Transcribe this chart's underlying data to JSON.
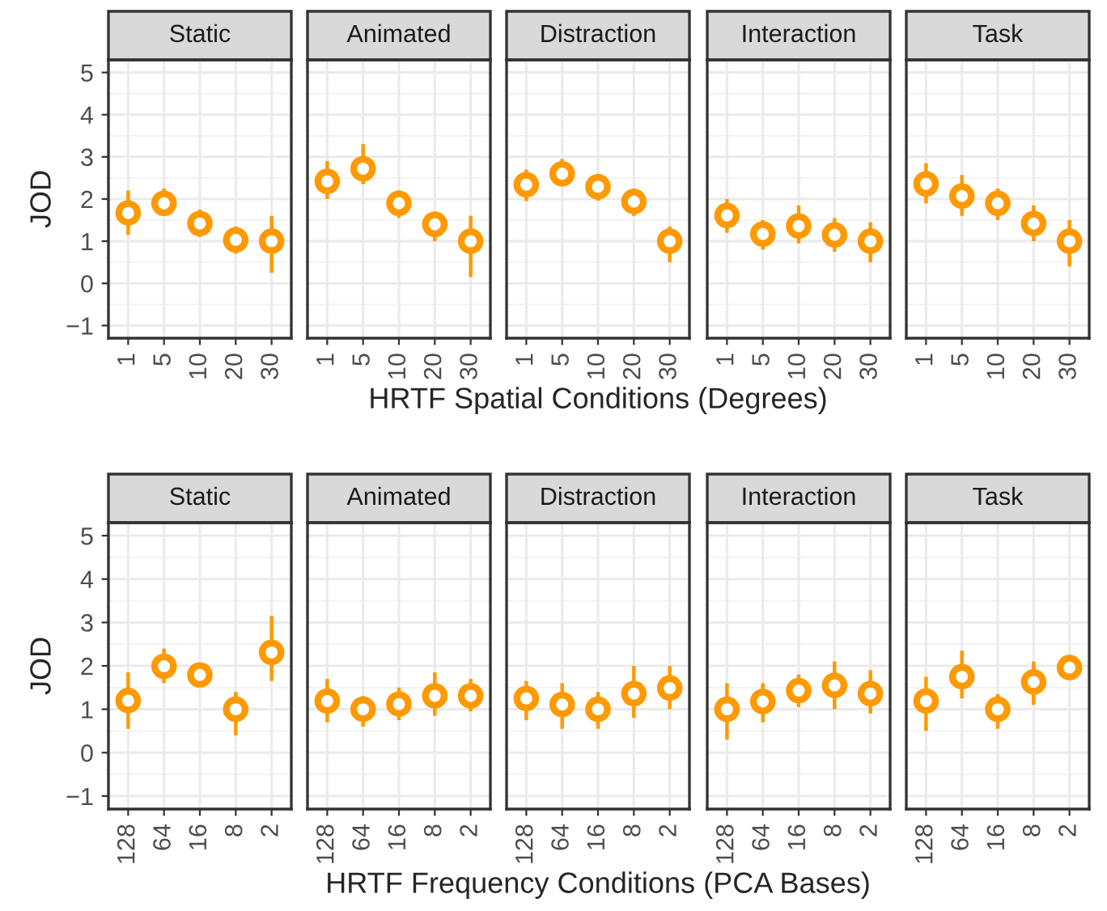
{
  "chart_data": [
    {
      "type": "scatter",
      "title": "Static",
      "ylabel": "JOD",
      "categories": [
        "1",
        "5",
        "10",
        "20",
        "30"
      ],
      "values": [
        1.67,
        1.9,
        1.42,
        1.03,
        1.0
      ],
      "errors": [
        [
          1.15,
          2.2
        ],
        [
          1.6,
          2.25
        ],
        [
          1.1,
          1.75
        ],
        [
          0.7,
          1.35
        ],
        [
          0.25,
          1.6
        ]
      ],
      "color": "#ff9900",
      "marker": "circle",
      "ylim": [
        -1.3,
        5.3
      ],
      "yticks": [
        {
          "value": -1,
          "label": "−1"
        },
        0,
        1,
        2,
        3,
        4,
        5
      ],
      "grid": true
    },
    {
      "type": "scatter",
      "title": "Animated",
      "categories": [
        "1",
        "5",
        "10",
        "20",
        "30"
      ],
      "values": [
        2.42,
        2.72,
        1.9,
        1.4,
        1.0
      ],
      "errors": [
        [
          2.0,
          2.9
        ],
        [
          2.35,
          3.3
        ],
        [
          1.55,
          2.2
        ],
        [
          1.0,
          1.7
        ],
        [
          0.15,
          1.6
        ]
      ],
      "color": "#ff9900",
      "marker": "circle",
      "ylim": [
        -1.3,
        5.3
      ],
      "yticks": [
        -1,
        0,
        1,
        2,
        3,
        4,
        5
      ],
      "grid": true,
      "tick_labels": "x"
    },
    {
      "type": "scatter",
      "title": "Distraction",
      "xlabel": "HRTF Spatial Conditions (Degrees)",
      "categories": [
        "1",
        "5",
        "10",
        "20",
        "30"
      ],
      "values": [
        2.34,
        2.6,
        2.29,
        1.94,
        1.0
      ],
      "errors": [
        [
          1.95,
          2.7
        ],
        [
          2.3,
          2.95
        ],
        [
          1.96,
          2.6
        ],
        [
          1.6,
          2.25
        ],
        [
          0.5,
          1.35
        ]
      ],
      "color": "#ff9900",
      "marker": "circle",
      "ylim": [
        -1.3,
        5.3
      ],
      "yticks": [
        -1,
        0,
        1,
        2,
        3,
        4,
        5
      ],
      "grid": true,
      "tick_labels": "x"
    },
    {
      "type": "scatter",
      "title": "Interaction",
      "categories": [
        "1",
        "5",
        "10",
        "20",
        "30"
      ],
      "values": [
        1.61,
        1.17,
        1.36,
        1.15,
        1.0
      ],
      "errors": [
        [
          1.2,
          2.0
        ],
        [
          0.8,
          1.5
        ],
        [
          0.95,
          1.85
        ],
        [
          0.75,
          1.55
        ],
        [
          0.5,
          1.45
        ]
      ],
      "color": "#ff9900",
      "marker": "circle",
      "ylim": [
        -1.3,
        5.3
      ],
      "yticks": [
        -1,
        0,
        1,
        2,
        3,
        4,
        5
      ],
      "grid": true,
      "tick_labels": "x"
    },
    {
      "type": "scatter",
      "title": "Task",
      "categories": [
        "1",
        "5",
        "10",
        "20",
        "30"
      ],
      "values": [
        2.36,
        2.07,
        1.9,
        1.42,
        1.0
      ],
      "errors": [
        [
          1.9,
          2.85
        ],
        [
          1.6,
          2.57
        ],
        [
          1.5,
          2.25
        ],
        [
          1.0,
          1.85
        ],
        [
          0.4,
          1.5
        ]
      ],
      "color": "#ff9900",
      "marker": "circle",
      "ylim": [
        -1.3,
        5.3
      ],
      "yticks": [
        -1,
        0,
        1,
        2,
        3,
        4,
        5
      ],
      "grid": true,
      "tick_labels": "x"
    },
    {
      "type": "scatter",
      "title": "Static",
      "ylabel": "JOD",
      "categories": [
        "128",
        "64",
        "16",
        "8",
        "2"
      ],
      "values": [
        1.2,
        1.99,
        1.79,
        1.0,
        2.31
      ],
      "errors": [
        [
          0.55,
          1.85
        ],
        [
          1.6,
          2.4
        ],
        [
          1.6,
          2.05
        ],
        [
          0.4,
          1.4
        ],
        [
          1.65,
          3.15
        ]
      ],
      "color": "#ff9900",
      "marker": "circle",
      "ylim": [
        -1.3,
        5.3
      ],
      "yticks": [
        {
          "value": -1,
          "label": "−1"
        },
        0,
        1,
        2,
        3,
        4,
        5
      ],
      "grid": true
    },
    {
      "type": "scatter",
      "title": "Animated",
      "categories": [
        "128",
        "64",
        "16",
        "8",
        "2"
      ],
      "values": [
        1.19,
        1.0,
        1.12,
        1.31,
        1.31
      ],
      "errors": [
        [
          0.7,
          1.7
        ],
        [
          0.6,
          1.3
        ],
        [
          0.75,
          1.5
        ],
        [
          0.85,
          1.85
        ],
        [
          0.95,
          1.7
        ]
      ],
      "color": "#ff9900",
      "marker": "circle",
      "ylim": [
        -1.3,
        5.3
      ],
      "yticks": [
        -1,
        0,
        1,
        2,
        3,
        4,
        5
      ],
      "grid": true,
      "tick_labels": "x"
    },
    {
      "type": "scatter",
      "title": "Distraction",
      "xlabel": "HRTF Frequency Conditions (PCA Bases)",
      "categories": [
        "128",
        "64",
        "16",
        "8",
        "2"
      ],
      "values": [
        1.25,
        1.11,
        1.0,
        1.36,
        1.49
      ],
      "errors": [
        [
          0.75,
          1.65
        ],
        [
          0.55,
          1.6
        ],
        [
          0.55,
          1.4
        ],
        [
          0.8,
          2.0
        ],
        [
          1.0,
          2.0
        ]
      ],
      "color": "#ff9900",
      "marker": "circle",
      "ylim": [
        -1.3,
        5.3
      ],
      "yticks": [
        -1,
        0,
        1,
        2,
        3,
        4,
        5
      ],
      "grid": true,
      "tick_labels": "x"
    },
    {
      "type": "scatter",
      "title": "Interaction",
      "categories": [
        "128",
        "64",
        "16",
        "8",
        "2"
      ],
      "values": [
        1.0,
        1.18,
        1.43,
        1.55,
        1.36
      ],
      "errors": [
        [
          0.3,
          1.6
        ],
        [
          0.7,
          1.6
        ],
        [
          1.05,
          1.8
        ],
        [
          1.0,
          2.1
        ],
        [
          0.9,
          1.9
        ]
      ],
      "color": "#ff9900",
      "marker": "circle",
      "ylim": [
        -1.3,
        5.3
      ],
      "yticks": [
        -1,
        0,
        1,
        2,
        3,
        4,
        5
      ],
      "grid": true,
      "tick_labels": "x"
    },
    {
      "type": "scatter",
      "title": "Task",
      "categories": [
        "128",
        "64",
        "16",
        "8",
        "2"
      ],
      "values": [
        1.19,
        1.75,
        1.0,
        1.63,
        1.96
      ],
      "errors": [
        [
          0.5,
          1.75
        ],
        [
          1.25,
          2.35
        ],
        [
          0.55,
          1.35
        ],
        [
          1.1,
          2.1
        ],
        [
          1.8,
          2.15
        ]
      ],
      "color": "#ff9900",
      "marker": "circle",
      "ylim": [
        -1.3,
        5.3
      ],
      "yticks": [
        -1,
        0,
        1,
        2,
        3,
        4,
        5
      ],
      "grid": true,
      "tick_labels": "x"
    }
  ]
}
